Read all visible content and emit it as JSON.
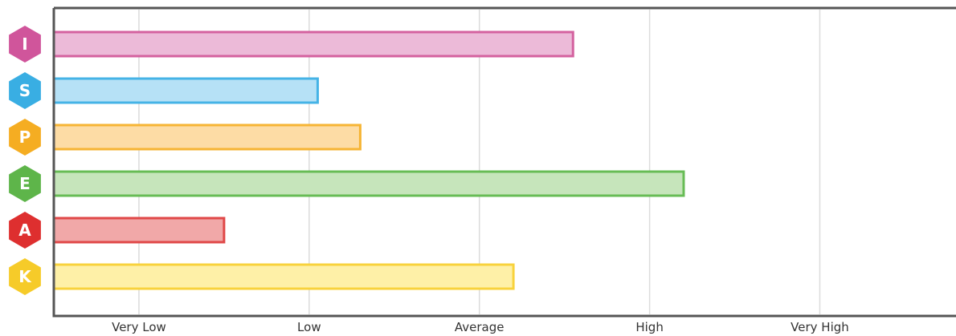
{
  "chart_data": {
    "type": "bar",
    "orientation": "horizontal",
    "categories": [
      "I",
      "S",
      "P",
      "E",
      "A",
      "K"
    ],
    "values": [
      3.55,
      2.05,
      2.3,
      4.2,
      1.5,
      3.2
    ],
    "colors": [
      {
        "fill": "#ecbad8",
        "stroke": "#d4629f",
        "badge": "#d0559b"
      },
      {
        "fill": "#b6e1f6",
        "stroke": "#45b3e6",
        "badge": "#39aee3"
      },
      {
        "fill": "#fddca5",
        "stroke": "#f6b434",
        "badge": "#f5ad22"
      },
      {
        "fill": "#c6e5bb",
        "stroke": "#67bc55",
        "badge": "#5eb54a"
      },
      {
        "fill": "#f1a8a8",
        "stroke": "#e04848",
        "badge": "#de2f2f"
      },
      {
        "fill": "#fef0a7",
        "stroke": "#f8d23c",
        "badge": "#f6cb29"
      }
    ],
    "ticks": [
      {
        "value": 1,
        "label": "Very Low"
      },
      {
        "value": 2,
        "label": "Low"
      },
      {
        "value": 3,
        "label": "Average"
      },
      {
        "value": 4,
        "label": "High"
      },
      {
        "value": 5,
        "label": "Very High"
      }
    ],
    "xlim": [
      0.5,
      5.8
    ],
    "grid": true,
    "title": "",
    "xlabel": "",
    "ylabel": ""
  }
}
